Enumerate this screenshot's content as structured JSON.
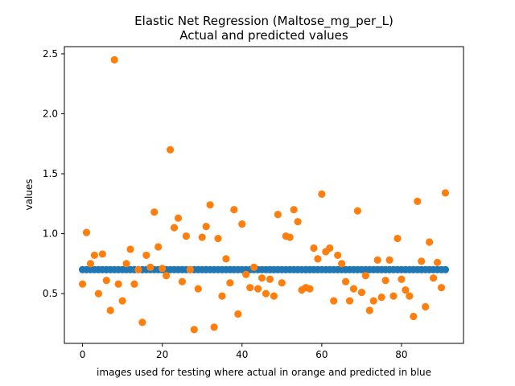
{
  "chart_data": {
    "type": "scatter",
    "title": "Elastic Net Regression (Maltose_mg_per_L)",
    "subtitle": "Actual and predicted values",
    "xlabel": "images used for testing where actual in orange and predicted in blue",
    "ylabel": "values",
    "xlim": [
      -4.55,
      95.55
    ],
    "ylim": [
      0.085,
      2.56
    ],
    "xticks": [
      0,
      20,
      40,
      60,
      80
    ],
    "xtick_labels": [
      "0",
      "20",
      "40",
      "60",
      "80"
    ],
    "yticks": [
      0.5,
      1.0,
      1.5,
      2.0,
      2.5
    ],
    "ytick_labels": [
      "0.5",
      "1.0",
      "1.5",
      "2.0",
      "2.5"
    ],
    "grid": false,
    "series": [
      {
        "color": "#1f77b4",
        "x": [
          0,
          1,
          2,
          3,
          4,
          5,
          6,
          7,
          8,
          9,
          10,
          11,
          12,
          13,
          14,
          15,
          16,
          17,
          18,
          19,
          20,
          21,
          22,
          23,
          24,
          25,
          26,
          27,
          28,
          29,
          30,
          31,
          32,
          33,
          34,
          35,
          36,
          37,
          38,
          39,
          40,
          41,
          42,
          43,
          44,
          45,
          46,
          47,
          48,
          49,
          50,
          51,
          52,
          53,
          54,
          55,
          56,
          57,
          58,
          59,
          60,
          61,
          62,
          63,
          64,
          65,
          66,
          67,
          68,
          69,
          70,
          71,
          72,
          73,
          74,
          75,
          76,
          77,
          78,
          79,
          80,
          81,
          82,
          83,
          84,
          85,
          86,
          87,
          88,
          89,
          90,
          91
        ],
        "y": [
          0.7,
          0.7,
          0.7,
          0.7,
          0.7,
          0.7,
          0.7,
          0.7,
          0.7,
          0.7,
          0.7,
          0.7,
          0.7,
          0.7,
          0.7,
          0.7,
          0.7,
          0.7,
          0.7,
          0.7,
          0.7,
          0.7,
          0.7,
          0.7,
          0.7,
          0.7,
          0.7,
          0.7,
          0.7,
          0.7,
          0.7,
          0.7,
          0.7,
          0.7,
          0.7,
          0.7,
          0.7,
          0.7,
          0.7,
          0.7,
          0.7,
          0.7,
          0.7,
          0.7,
          0.7,
          0.7,
          0.7,
          0.7,
          0.7,
          0.7,
          0.7,
          0.7,
          0.7,
          0.7,
          0.7,
          0.7,
          0.7,
          0.7,
          0.7,
          0.7,
          0.7,
          0.7,
          0.7,
          0.7,
          0.7,
          0.7,
          0.7,
          0.7,
          0.7,
          0.7,
          0.7,
          0.7,
          0.7,
          0.7,
          0.7,
          0.7,
          0.7,
          0.7,
          0.7,
          0.7,
          0.7,
          0.7,
          0.7,
          0.7,
          0.7,
          0.7,
          0.7,
          0.7,
          0.7,
          0.7,
          0.7,
          0.7
        ]
      },
      {
        "color": "#ff7f0e",
        "x": [
          0,
          1,
          2,
          3,
          4,
          5,
          6,
          7,
          8,
          9,
          10,
          11,
          12,
          13,
          14,
          15,
          16,
          17,
          18,
          19,
          20,
          21,
          22,
          23,
          24,
          25,
          26,
          27,
          28,
          29,
          30,
          31,
          32,
          33,
          34,
          35,
          36,
          37,
          38,
          39,
          40,
          41,
          42,
          43,
          44,
          45,
          46,
          47,
          48,
          49,
          50,
          51,
          52,
          53,
          54,
          55,
          56,
          57,
          58,
          59,
          60,
          61,
          62,
          63,
          64,
          65,
          66,
          67,
          68,
          69,
          70,
          71,
          72,
          73,
          74,
          75,
          76,
          77,
          78,
          79,
          80,
          81,
          82,
          83,
          84,
          85,
          86,
          87,
          88,
          89,
          90,
          91
        ],
        "y": [
          0.58,
          1.01,
          0.75,
          0.82,
          0.5,
          0.83,
          0.61,
          0.36,
          2.45,
          0.58,
          0.44,
          0.75,
          0.87,
          0.58,
          0.7,
          0.26,
          0.82,
          0.72,
          1.18,
          0.89,
          0.71,
          0.65,
          1.7,
          1.05,
          1.13,
          0.6,
          0.98,
          0.7,
          0.2,
          0.54,
          0.97,
          1.06,
          1.24,
          0.22,
          0.96,
          0.48,
          0.79,
          0.59,
          1.2,
          0.33,
          1.08,
          0.66,
          0.55,
          0.72,
          0.54,
          0.63,
          0.5,
          0.62,
          0.48,
          1.16,
          0.59,
          0.98,
          0.97,
          1.2,
          1.1,
          0.53,
          0.55,
          0.54,
          0.88,
          0.79,
          1.33,
          0.85,
          0.88,
          0.44,
          0.82,
          0.75,
          0.6,
          0.44,
          0.54,
          1.19,
          0.51,
          0.65,
          0.36,
          0.44,
          0.78,
          0.47,
          0.61,
          0.78,
          0.48,
          0.96,
          0.62,
          0.53,
          0.48,
          0.31,
          1.27,
          0.77,
          0.39,
          0.93,
          0.63,
          0.76,
          0.55,
          1.34
        ]
      }
    ]
  }
}
